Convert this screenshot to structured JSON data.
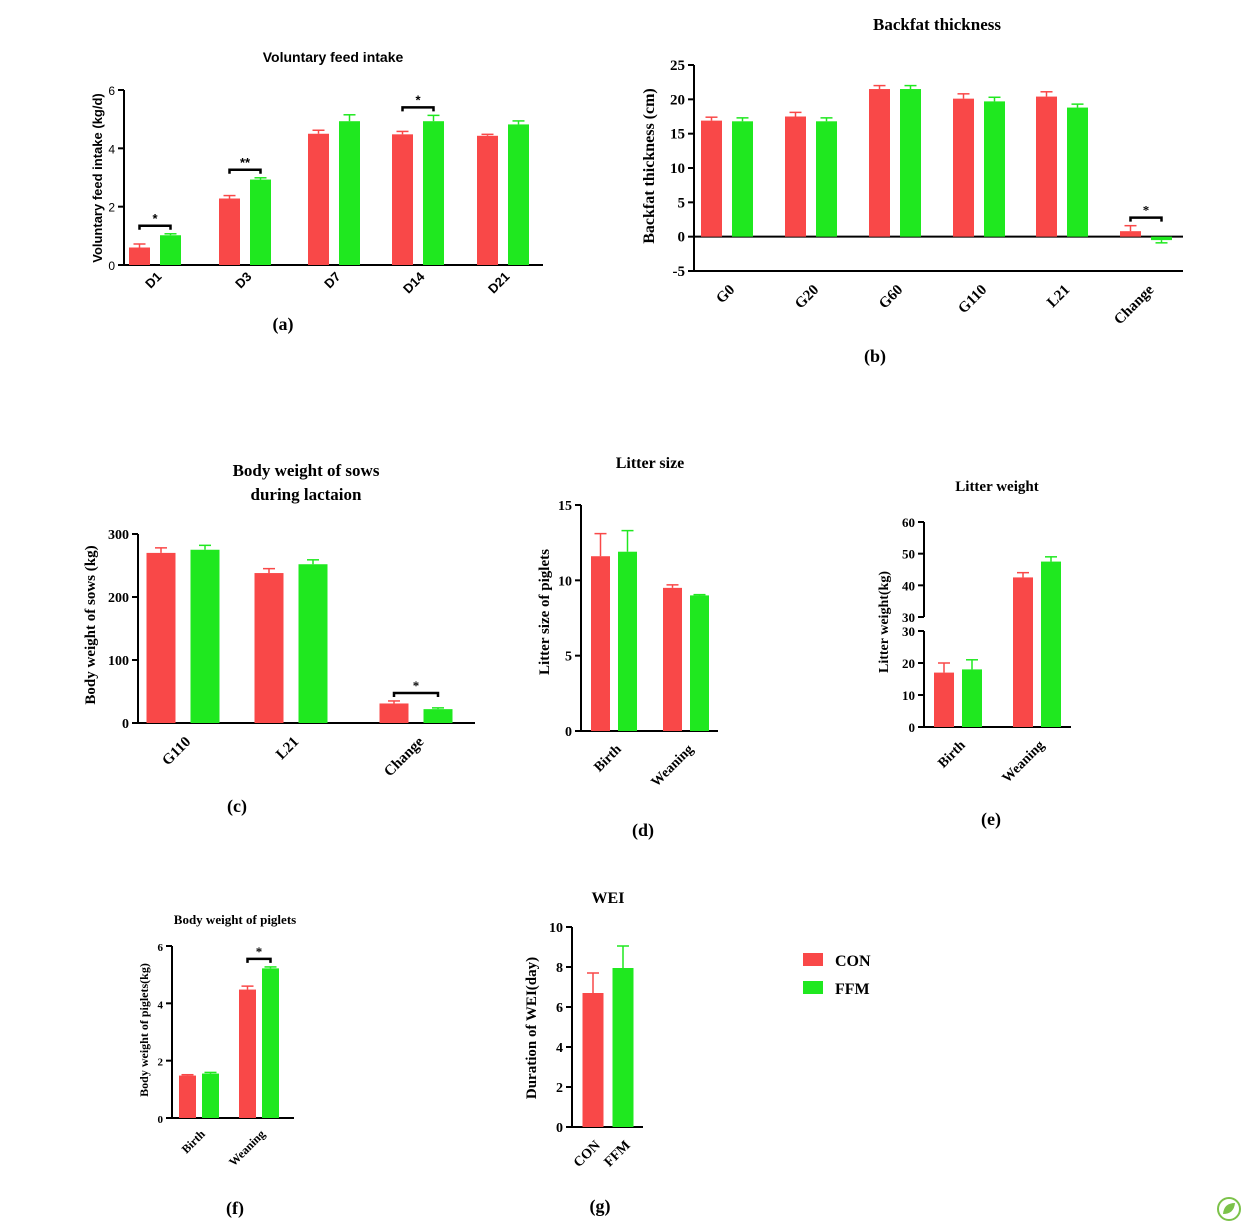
{
  "colors": {
    "con": "#F94848",
    "ffm": "#1FE81F",
    "axis": "#000000"
  },
  "legend": {
    "items": [
      {
        "label": "CON",
        "color": "#F94848"
      },
      {
        "label": "FFM",
        "color": "#1FE81F"
      }
    ]
  },
  "chart_data": [
    {
      "id": "a",
      "panel_label": "(a)",
      "type": "bar",
      "title": "Voluntary feed intake",
      "ylabel": "Voluntary feed intake (kg/d)",
      "xlabel": "",
      "ylim": [
        0,
        6
      ],
      "yticks": [
        "0",
        "2",
        "4",
        "6"
      ],
      "categories": [
        "D1",
        "D3",
        "D7",
        "D14",
        "D21"
      ],
      "series": [
        {
          "name": "CON",
          "values": [
            0.6,
            2.28,
            4.5,
            4.48,
            4.43
          ],
          "errors": [
            0.12,
            0.1,
            0.12,
            0.1,
            0.05
          ]
        },
        {
          "name": "FFM",
          "values": [
            1.02,
            2.93,
            4.93,
            4.93,
            4.82
          ],
          "errors": [
            0.05,
            0.06,
            0.22,
            0.2,
            0.12
          ]
        }
      ],
      "significance": [
        {
          "category": "D1",
          "label": "*"
        },
        {
          "category": "D3",
          "label": "**"
        },
        {
          "category": "D14",
          "label": "*"
        }
      ]
    },
    {
      "id": "b",
      "panel_label": "(b)",
      "type": "bar",
      "title": "Backfat thickness",
      "ylabel": "Backfat thickness (cm)",
      "xlabel": "",
      "ylim": [
        -5,
        25
      ],
      "yticks": [
        "-5",
        "0",
        "5",
        "10",
        "15",
        "20",
        "25"
      ],
      "categories": [
        "G0",
        "G20",
        "G60",
        "G110",
        "L21",
        "Change"
      ],
      "series": [
        {
          "name": "CON",
          "values": [
            16.9,
            17.5,
            21.5,
            20.1,
            20.4,
            0.8
          ],
          "errors": [
            0.5,
            0.6,
            0.5,
            0.7,
            0.7,
            0.8
          ]
        },
        {
          "name": "FFM",
          "values": [
            16.8,
            16.8,
            21.5,
            19.7,
            18.8,
            -0.5
          ],
          "errors": [
            0.5,
            0.5,
            0.5,
            0.6,
            0.5,
            0.4
          ]
        }
      ],
      "significance": [
        {
          "category": "Change",
          "label": "*"
        }
      ]
    },
    {
      "id": "c",
      "panel_label": "(c)",
      "type": "bar",
      "title": "Body weight of sows during lactaion",
      "title_lines": [
        "Body weight of sows",
        "during lactaion"
      ],
      "ylabel": "Body weight of sows (kg)",
      "xlabel": "",
      "ylim": [
        0,
        300
      ],
      "yticks": [
        "0",
        "100",
        "200",
        "300"
      ],
      "categories": [
        "G110",
        "L21",
        "Change"
      ],
      "series": [
        {
          "name": "CON",
          "values": [
            270,
            238,
            31
          ],
          "errors": [
            8,
            7,
            4
          ]
        },
        {
          "name": "FFM",
          "values": [
            275,
            252,
            22
          ],
          "errors": [
            7,
            7,
            2
          ]
        }
      ],
      "significance": [
        {
          "category": "Change",
          "label": "*"
        }
      ]
    },
    {
      "id": "d",
      "panel_label": "(d)",
      "type": "bar",
      "title": "Litter size",
      "ylabel": "Litter size of piglets",
      "xlabel": "",
      "ylim": [
        0,
        15
      ],
      "yticks": [
        "0",
        "5",
        "10",
        "15"
      ],
      "categories": [
        "Birth",
        "Weaning"
      ],
      "series": [
        {
          "name": "CON",
          "values": [
            11.6,
            9.5
          ],
          "errors": [
            1.5,
            0.2
          ]
        },
        {
          "name": "FFM",
          "values": [
            11.9,
            9.0
          ],
          "errors": [
            1.4,
            0.05
          ]
        }
      ],
      "significance": []
    },
    {
      "id": "e",
      "panel_label": "(e)",
      "type": "bar",
      "title": "Litter  weight",
      "ylabel": "Litter weight(kg)",
      "xlabel": "",
      "ylim": [
        0,
        60
      ],
      "axis_break": [
        30,
        30
      ],
      "yticks": [
        "0",
        "10",
        "20",
        "30",
        "30",
        "40",
        "50",
        "60"
      ],
      "categories": [
        "Birth",
        "Weaning"
      ],
      "series": [
        {
          "name": "CON",
          "values": [
            17,
            42.5
          ],
          "errors": [
            3,
            1.5
          ]
        },
        {
          "name": "FFM",
          "values": [
            18,
            47.5
          ],
          "errors": [
            3,
            1.5
          ]
        }
      ],
      "significance": []
    },
    {
      "id": "f",
      "panel_label": "(f)",
      "type": "bar",
      "title": "Body weight of piglets",
      "ylabel": "Body weight of piglets(kg)",
      "xlabel": "",
      "ylim": [
        0,
        6
      ],
      "yticks": [
        "0",
        "2",
        "4",
        "6"
      ],
      "categories": [
        "Birth",
        "Weaning"
      ],
      "series": [
        {
          "name": "CON",
          "values": [
            1.48,
            4.48
          ],
          "errors": [
            0.03,
            0.12
          ]
        },
        {
          "name": "FFM",
          "values": [
            1.55,
            5.22
          ],
          "errors": [
            0.04,
            0.05
          ]
        }
      ],
      "significance": [
        {
          "category": "Weaning",
          "label": "*"
        }
      ]
    },
    {
      "id": "g",
      "panel_label": "(g)",
      "type": "bar",
      "title": "WEI",
      "ylabel": "Duration of WEI(day)",
      "xlabel": "",
      "ylim": [
        0,
        10
      ],
      "yticks": [
        "0",
        "2",
        "4",
        "6",
        "8",
        "10"
      ],
      "categories": [
        "CON",
        "FFM"
      ],
      "series": [
        {
          "name": "CON",
          "values": [
            6.7,
            null
          ],
          "errors": [
            1.0,
            null
          ]
        },
        {
          "name": "FFM",
          "values": [
            null,
            7.95
          ],
          "errors": [
            null,
            1.1
          ]
        }
      ],
      "significance": []
    }
  ]
}
